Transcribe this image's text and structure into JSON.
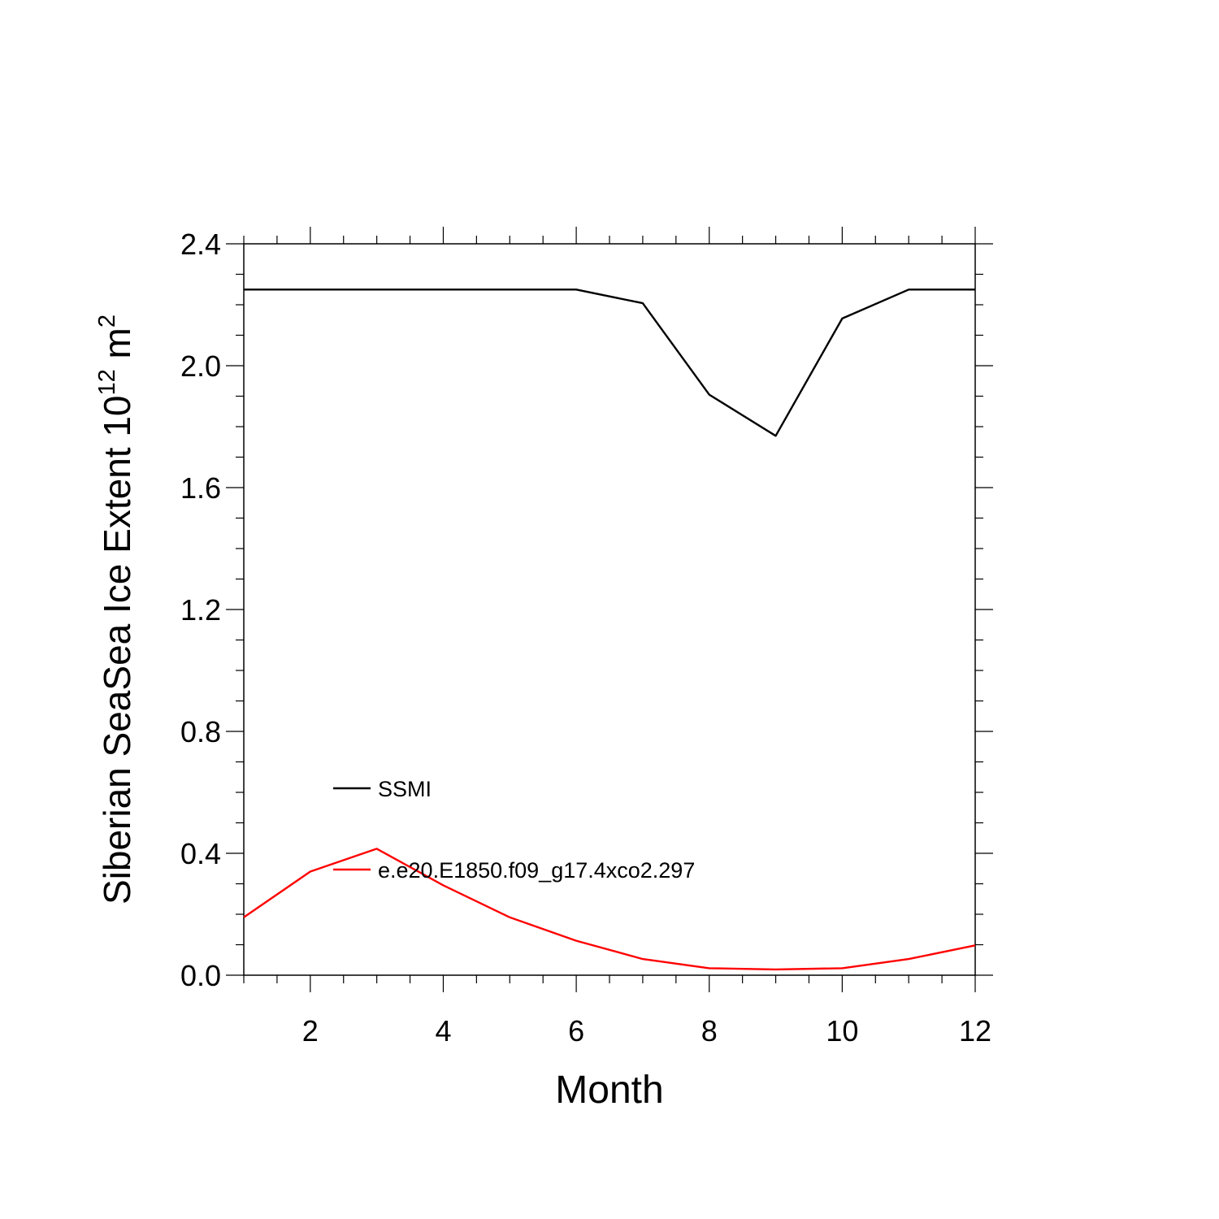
{
  "chart_data": {
    "type": "line",
    "xlabel": "Month",
    "ylabel": {
      "text": "Siberian SeaSea Ice Extent 10",
      "exponent": "12",
      "unit": "m",
      "unit_exponent": "2"
    },
    "xlim": [
      1,
      12
    ],
    "ylim": [
      0,
      2.4
    ],
    "xticks": [
      2,
      4,
      6,
      8,
      10,
      12
    ],
    "xtick_labels": [
      "2",
      "4",
      "6",
      "8",
      "10",
      "12"
    ],
    "xminor_step": 0.5,
    "yticks": [
      0,
      0.4,
      0.8,
      1.2,
      1.6,
      2.0,
      2.4
    ],
    "ytick_labels": [
      "0.0",
      "0.4",
      "0.8",
      "1.2",
      "1.6",
      "2.0",
      "2.4"
    ],
    "yminor_step": 0.1,
    "grid": false,
    "legend_position": "lower-left",
    "x": [
      1,
      2,
      3,
      4,
      5,
      6,
      7,
      8,
      9,
      10,
      11,
      12
    ],
    "series": [
      {
        "name": "SSMI",
        "color": "#000000",
        "values": [
          2.25,
          2.25,
          2.25,
          2.25,
          2.25,
          2.25,
          2.205,
          1.905,
          1.77,
          2.155,
          2.25,
          2.25
        ]
      },
      {
        "name": "e.e20.E1850.f09_g17.4xco2.297",
        "color": "#ff0000",
        "values": [
          0.19,
          0.34,
          0.415,
          0.295,
          0.19,
          0.113,
          0.053,
          0.023,
          0.019,
          0.023,
          0.053,
          0.098
        ]
      }
    ]
  }
}
